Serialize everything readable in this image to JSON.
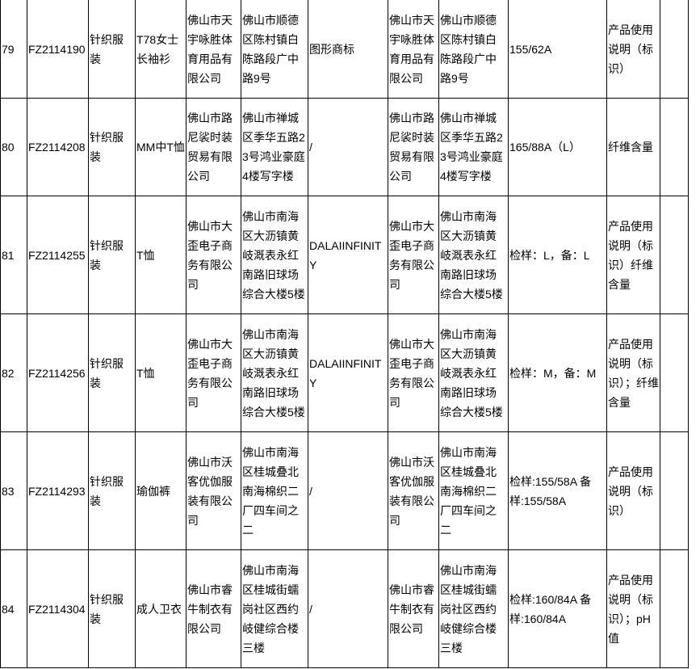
{
  "rows": [
    {
      "no": "79",
      "code": "FZ2114190",
      "category": "针织服装",
      "product": "T78女士长袖衫",
      "producer": "佛山市天宇咏胜体育用品有限公司",
      "producer_addr": "佛山市顺德区陈村镇白陈路段广中路9号",
      "trademark": "图形商标",
      "seller": "佛山市天宇咏胜体育用品有限公司",
      "seller_addr": "佛山市顺德区陈村镇白陈路段广中路9号",
      "spec": "155/62A",
      "failed": "产品使用说明（标识）",
      "extra": ""
    },
    {
      "no": "80",
      "code": "FZ2114208",
      "category": "针织服装",
      "product": "MM中T恤",
      "producer": "佛山市路尼裟时装贸易有限公司",
      "producer_addr": "佛山市禅城区季华五路23号鸿业豪庭4楼写字楼",
      "trademark": "/",
      "seller": "佛山市路尼裟时装贸易有限公司",
      "seller_addr": "佛山市禅城区季华五路23号鸿业豪庭4楼写字楼",
      "spec": "165/88A（L）",
      "failed": "纤维含量",
      "extra": ""
    },
    {
      "no": "81",
      "code": "FZ2114255",
      "category": "针织服装",
      "product": "T恤",
      "producer": "佛山市大歪电子商务有限公司",
      "producer_addr": "佛山市南海区大沥镇黄岐溉表永红南路旧球场综合大楼5楼",
      "trademark": "DALAIINFINITY",
      "seller": "佛山市大歪电子商务有限公司",
      "seller_addr": "佛山市南海区大沥镇黄岐溉表永红南路旧球场综合大楼5楼",
      "spec": "检样：L，备：L",
      "failed": "产品使用说明（标识）纤维含量",
      "extra": ""
    },
    {
      "no": "82",
      "code": "FZ2114256",
      "category": "针织服装",
      "product": "T恤",
      "producer": "佛山市大歪电子商务有限公司",
      "producer_addr": "佛山市南海区大沥镇黄岐溉表永红南路旧球场综合大楼5楼",
      "trademark": "DALAIINFINITY",
      "seller": "佛山市大歪电子商务有限公司",
      "seller_addr": "佛山市南海区大沥镇黄岐溉表永红南路旧球场综合大楼5楼",
      "spec": "检样：M，备：M",
      "failed": "产品使用说明（标识）；纤维含量",
      "extra": ""
    },
    {
      "no": "83",
      "code": "FZ2114293",
      "category": "针织服装",
      "product": "瑜伽裤",
      "producer": "佛山市沃客优伽服装有限公司",
      "producer_addr": "佛山市南海区桂城叠北南海棉织二厂四车间之二",
      "trademark": "/",
      "seller": "佛山市沃客优伽服装有限公司",
      "seller_addr": "佛山市南海区桂城叠北南海棉织二厂四车间之二",
      "spec": "检样:155/58A 备样:155/58A",
      "failed": "产品使用说明（标识）",
      "extra": ""
    },
    {
      "no": "84",
      "code": "FZ2114304",
      "category": "针织服装",
      "product": "成人卫衣",
      "producer": "佛山市睿牛制衣有限公司",
      "producer_addr": "佛山市南海区桂城街蠕岗社区西约岐健综合楼三楼",
      "trademark": "/",
      "seller": "佛山市睿牛制衣有限公司",
      "seller_addr": "佛山市南海区桂城街蠕岗社区西约岐健综合楼三楼",
      "spec": "检样:160/84A 备样:160/84A",
      "failed": "产品使用说明（标识）；pH值",
      "extra": ""
    }
  ]
}
